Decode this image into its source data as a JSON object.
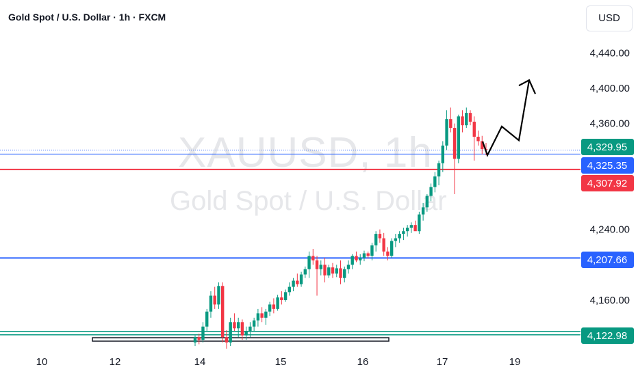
{
  "header": {
    "title": "Gold Spot / U.S. Dollar · 1h · FXCM",
    "currency": "USD"
  },
  "watermark": {
    "symbol": "XAUUSD, 1h",
    "description": "Gold Spot / U.S. Dollar"
  },
  "colors": {
    "up": "#089981",
    "down": "#f23645",
    "blue_line": "#2962ff",
    "red_line": "#f23645",
    "green_line": "#089981"
  },
  "chart_data": {
    "type": "candlestick",
    "title": "Gold Spot / U.S. Dollar · 1h · FXCM",
    "ylim": [
      4105,
      4465
    ],
    "y_ticks": [
      "4,440.00",
      "4,400.00",
      "4,360.00",
      "4,240.00",
      "4,160.00"
    ],
    "y_tick_values": [
      4440,
      4400,
      4360,
      4240,
      4160
    ],
    "x_ticks": [
      "10",
      "12",
      "14",
      "15",
      "16",
      "17",
      "19"
    ],
    "levels": [
      {
        "label": "4,329.95",
        "value": 4329.95,
        "style": "dotted",
        "color": "#2962ff",
        "badge": "#089981"
      },
      {
        "label": "4,325.35",
        "value": 4325.35,
        "style": "solid-thin",
        "color": "#2962ff",
        "badge": "#2962ff"
      },
      {
        "label": "4,307.92",
        "value": 4307.92,
        "style": "solid",
        "color": "#f23645",
        "badge": "#f23645"
      },
      {
        "label": "4,207.66",
        "value": 4207.66,
        "style": "solid",
        "color": "#2962ff",
        "badge": "#2962ff"
      },
      {
        "label": "4,122.98",
        "value": 4122.98,
        "style": "double",
        "color": "#089981",
        "badge": "#089981"
      }
    ],
    "candles": [
      [
        4112,
        4120,
        4108,
        4118
      ],
      [
        4118,
        4122,
        4110,
        4115
      ],
      [
        4115,
        4135,
        4112,
        4130
      ],
      [
        4130,
        4150,
        4125,
        4147
      ],
      [
        4147,
        4170,
        4140,
        4165
      ],
      [
        4165,
        4175,
        4150,
        4155
      ],
      [
        4155,
        4180,
        4150,
        4176
      ],
      [
        4176,
        4180,
        4112,
        4118
      ],
      [
        4118,
        4126,
        4105,
        4112
      ],
      [
        4112,
        4140,
        4108,
        4135
      ],
      [
        4135,
        4145,
        4125,
        4128
      ],
      [
        4128,
        4140,
        4118,
        4135
      ],
      [
        4135,
        4138,
        4115,
        4120
      ],
      [
        4120,
        4130,
        4115,
        4125
      ],
      [
        4125,
        4135,
        4118,
        4130
      ],
      [
        4130,
        4140,
        4125,
        4137
      ],
      [
        4137,
        4150,
        4130,
        4145
      ],
      [
        4145,
        4152,
        4135,
        4140
      ],
      [
        4140,
        4150,
        4132,
        4147
      ],
      [
        4147,
        4158,
        4142,
        4155
      ],
      [
        4155,
        4162,
        4145,
        4150
      ],
      [
        4150,
        4166,
        4148,
        4163
      ],
      [
        4163,
        4170,
        4155,
        4160
      ],
      [
        4160,
        4172,
        4158,
        4169
      ],
      [
        4169,
        4180,
        4165,
        4175
      ],
      [
        4175,
        4185,
        4170,
        4182
      ],
      [
        4182,
        4190,
        4175,
        4178
      ],
      [
        4178,
        4192,
        4175,
        4189
      ],
      [
        4189,
        4198,
        4185,
        4195
      ],
      [
        4195,
        4215,
        4185,
        4210
      ],
      [
        4210,
        4218,
        4200,
        4205
      ],
      [
        4205,
        4210,
        4165,
        4195
      ],
      [
        4195,
        4205,
        4188,
        4200
      ],
      [
        4200,
        4208,
        4180,
        4188
      ],
      [
        4188,
        4200,
        4185,
        4197
      ],
      [
        4197,
        4202,
        4185,
        4190
      ],
      [
        4190,
        4200,
        4186,
        4196
      ],
      [
        4196,
        4205,
        4178,
        4185
      ],
      [
        4185,
        4198,
        4180,
        4195
      ],
      [
        4195,
        4205,
        4190,
        4200
      ],
      [
        4200,
        4212,
        4195,
        4210
      ],
      [
        4210,
        4215,
        4203,
        4205
      ],
      [
        4205,
        4212,
        4200,
        4208
      ],
      [
        4208,
        4216,
        4204,
        4213
      ],
      [
        4213,
        4215,
        4207,
        4210
      ],
      [
        4210,
        4225,
        4205,
        4222
      ],
      [
        4222,
        4238,
        4215,
        4235
      ],
      [
        4235,
        4240,
        4225,
        4230
      ],
      [
        4230,
        4236,
        4210,
        4215
      ],
      [
        4215,
        4220,
        4205,
        4210
      ],
      [
        4210,
        4230,
        4208,
        4227
      ],
      [
        4227,
        4235,
        4220,
        4230
      ],
      [
        4230,
        4238,
        4225,
        4235
      ],
      [
        4235,
        4242,
        4228,
        4238
      ],
      [
        4238,
        4245,
        4232,
        4242
      ],
      [
        4242,
        4248,
        4236,
        4245
      ],
      [
        4245,
        4250,
        4240,
        4238
      ],
      [
        4238,
        4260,
        4235,
        4257
      ],
      [
        4257,
        4270,
        4250,
        4265
      ],
      [
        4265,
        4280,
        4260,
        4278
      ],
      [
        4278,
        4292,
        4272,
        4288
      ],
      [
        4288,
        4305,
        4282,
        4300
      ],
      [
        4300,
        4318,
        4290,
        4315
      ],
      [
        4315,
        4340,
        4305,
        4335
      ],
      [
        4335,
        4375,
        4330,
        4365
      ],
      [
        4365,
        4378,
        4350,
        4355
      ],
      [
        4355,
        4360,
        4280,
        4320
      ],
      [
        4320,
        4370,
        4315,
        4368
      ],
      [
        4368,
        4375,
        4350,
        4358
      ],
      [
        4358,
        4378,
        4355,
        4372
      ],
      [
        4372,
        4375,
        4358,
        4362
      ],
      [
        4362,
        4368,
        4318,
        4345
      ],
      [
        4345,
        4352,
        4335,
        4340
      ],
      [
        4340,
        4346,
        4325,
        4331
      ],
      [
        4331,
        4338,
        4324,
        4330
      ]
    ],
    "projection": [
      [
        4339.6,
        4324.1
      ],
      [
        4354.7,
        4356.6
      ],
      [
        4371.3,
        4340.9
      ],
      [
        4396.2,
        4409.1
      ],
      [
        4409.1,
        4393.5
      ]
    ]
  }
}
